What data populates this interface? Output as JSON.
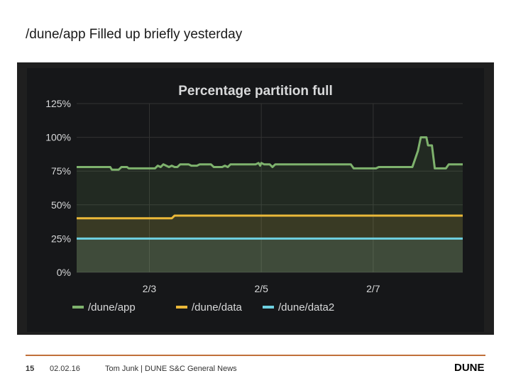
{
  "slide": {
    "title": "/dune/app Filled up briefly yesterday"
  },
  "footer": {
    "page_number": "15",
    "date": "02.02.16",
    "text": "Tom Junk | DUNE S&C General News",
    "logo_text": "DUNE"
  },
  "colors": {
    "app": "#7eb26d",
    "data": "#eab839",
    "data2": "#6ed0e0",
    "panel_bg": "#161719",
    "grid": "#333333",
    "text": "#d8d9da",
    "accent_line": "#c0703a"
  },
  "chart_data": {
    "type": "area",
    "title": "Percentage partition full",
    "y_ticks": [
      "125%",
      "100%",
      "75%",
      "50%",
      "25%",
      "0%"
    ],
    "ylim": [
      0,
      125
    ],
    "x_ticks": [
      {
        "label": "2/3",
        "x": 3
      },
      {
        "label": "2/5",
        "x": 5
      },
      {
        "label": "2/7",
        "x": 7
      }
    ],
    "xlim": [
      1.7,
      8.6
    ],
    "grid": true,
    "legend_position": "bottom",
    "series": [
      {
        "name": "/dune/app",
        "color": "#7eb26d",
        "points": [
          [
            1.7,
            78
          ],
          [
            2.3,
            78
          ],
          [
            2.33,
            76
          ],
          [
            2.45,
            76
          ],
          [
            2.5,
            78
          ],
          [
            2.6,
            78
          ],
          [
            2.63,
            77
          ],
          [
            3.1,
            77
          ],
          [
            3.15,
            79
          ],
          [
            3.2,
            78
          ],
          [
            3.25,
            80
          ],
          [
            3.3,
            79
          ],
          [
            3.35,
            78
          ],
          [
            3.4,
            79
          ],
          [
            3.45,
            78
          ],
          [
            3.5,
            78
          ],
          [
            3.55,
            80
          ],
          [
            3.7,
            80
          ],
          [
            3.75,
            79
          ],
          [
            3.85,
            79
          ],
          [
            3.9,
            80
          ],
          [
            4.1,
            80
          ],
          [
            4.15,
            78
          ],
          [
            4.3,
            78
          ],
          [
            4.35,
            79
          ],
          [
            4.4,
            78
          ],
          [
            4.45,
            80
          ],
          [
            4.9,
            80
          ],
          [
            4.95,
            81
          ],
          [
            4.98,
            79
          ],
          [
            5.0,
            81
          ],
          [
            5.05,
            80
          ],
          [
            5.15,
            80
          ],
          [
            5.2,
            78
          ],
          [
            5.25,
            80
          ],
          [
            6.6,
            80
          ],
          [
            6.65,
            77
          ],
          [
            7.05,
            77
          ],
          [
            7.1,
            78
          ],
          [
            7.7,
            78
          ],
          [
            7.8,
            90
          ],
          [
            7.85,
            100
          ],
          [
            7.95,
            100
          ],
          [
            7.98,
            94
          ],
          [
            8.05,
            94
          ],
          [
            8.1,
            77
          ],
          [
            8.3,
            77
          ],
          [
            8.35,
            80
          ],
          [
            8.6,
            80
          ]
        ]
      },
      {
        "name": "/dune/data",
        "color": "#eab839",
        "points": [
          [
            1.7,
            40
          ],
          [
            3.4,
            40
          ],
          [
            3.45,
            42
          ],
          [
            8.6,
            42
          ]
        ]
      },
      {
        "name": "/dune/data2",
        "color": "#6ed0e0",
        "points": [
          [
            1.7,
            25
          ],
          [
            8.6,
            25
          ]
        ]
      }
    ]
  }
}
